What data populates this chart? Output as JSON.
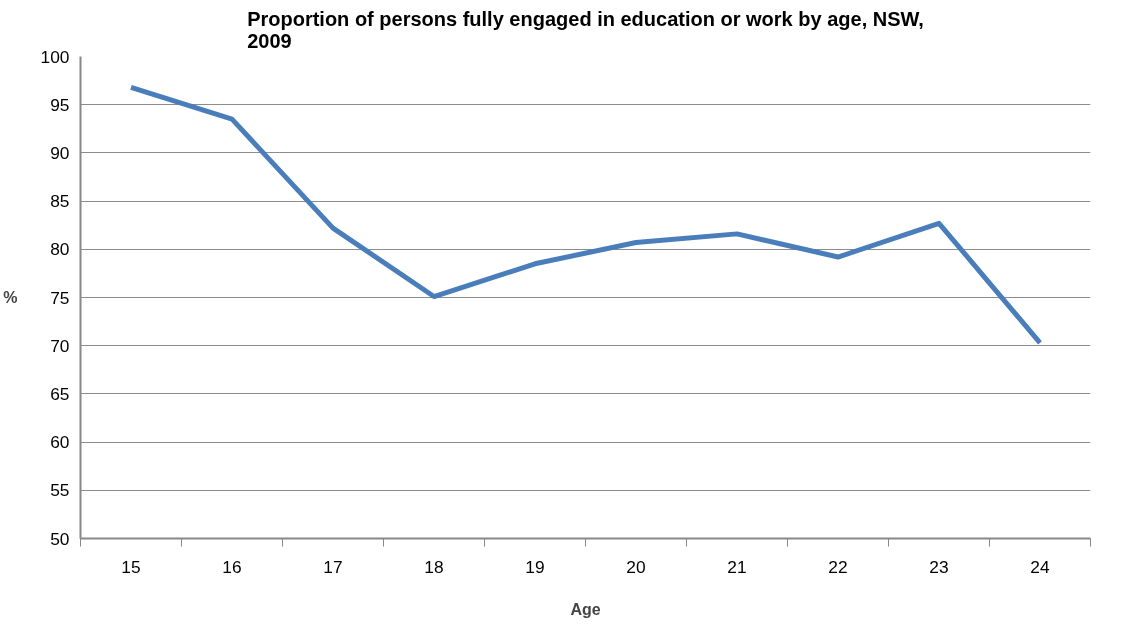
{
  "chart_data": {
    "type": "line",
    "title": "Proportion of persons fully engaged in education or work by age, NSW,\n2009",
    "xlabel": "Age",
    "ylabel": "%",
    "categories": [
      "15",
      "16",
      "17",
      "18",
      "19",
      "20",
      "21",
      "22",
      "23",
      "24"
    ],
    "series": [
      {
        "color": "#4a7ebb",
        "values": [
          96.8,
          93.5,
          82.2,
          75.1,
          78.5,
          80.7,
          81.6,
          79.2,
          82.7,
          70.3
        ]
      }
    ],
    "ylim": [
      50,
      100
    ],
    "yticks": [
      50,
      55,
      60,
      65,
      70,
      75,
      80,
      85,
      90,
      95,
      100
    ],
    "grid": "y",
    "marker": "none",
    "line_style": "solid"
  }
}
